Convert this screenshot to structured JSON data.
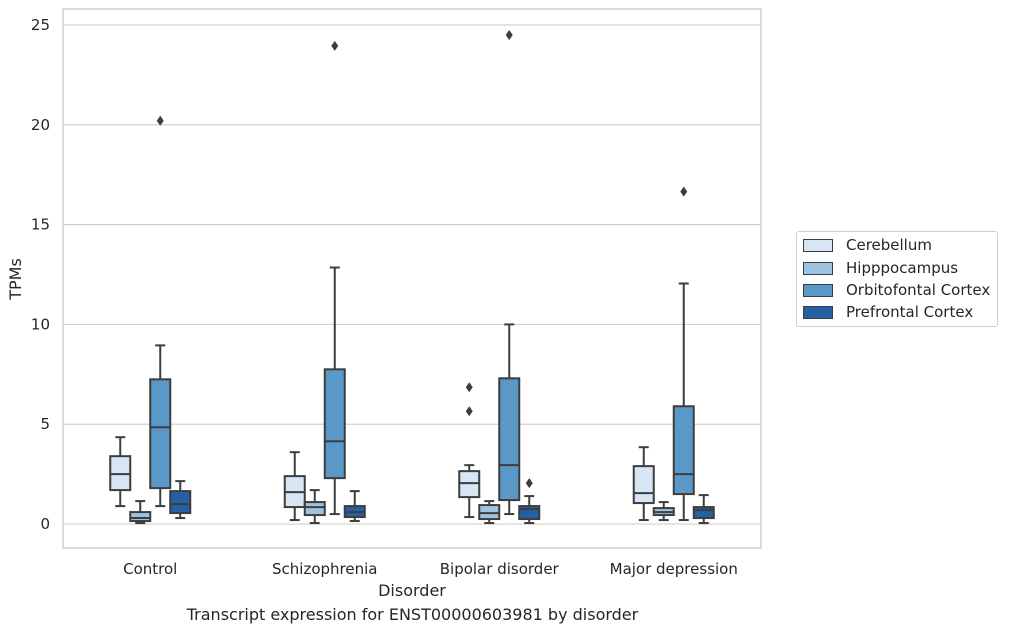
{
  "chart_data": {
    "type": "box",
    "xlabel": "Disorder",
    "ylabel": "TPMs",
    "caption": "Transcript expression for ENST00000603981 by disorder",
    "ylim": [
      -1.2,
      25.8
    ],
    "yticks": [
      0,
      5,
      10,
      15,
      20,
      25
    ],
    "grid": "horizontal",
    "legend_position": "outside-right",
    "categories": [
      "Control",
      "Schizophrenia",
      "Bipolar disorder",
      "Major depression"
    ],
    "series": [
      {
        "name": "Cerebellum",
        "color": "#d7e6f4",
        "boxes": [
          {
            "whisker_low": 0.9,
            "q1": 1.7,
            "median": 2.5,
            "q3": 3.4,
            "whisker_high": 4.35,
            "outliers": []
          },
          {
            "whisker_low": 0.2,
            "q1": 0.85,
            "median": 1.6,
            "q3": 2.4,
            "whisker_high": 3.6,
            "outliers": []
          },
          {
            "whisker_low": 0.35,
            "q1": 1.35,
            "median": 2.05,
            "q3": 2.65,
            "whisker_high": 2.95,
            "outliers": [
              5.65,
              6.85
            ]
          },
          {
            "whisker_low": 0.2,
            "q1": 1.05,
            "median": 1.55,
            "q3": 2.9,
            "whisker_high": 3.85,
            "outliers": []
          }
        ]
      },
      {
        "name": "Hipppocampus",
        "color": "#9dc3e0",
        "boxes": [
          {
            "whisker_low": 0.05,
            "q1": 0.15,
            "median": 0.3,
            "q3": 0.6,
            "whisker_high": 1.15,
            "outliers": []
          },
          {
            "whisker_low": 0.05,
            "q1": 0.45,
            "median": 0.85,
            "q3": 1.1,
            "whisker_high": 1.7,
            "outliers": []
          },
          {
            "whisker_low": 0.05,
            "q1": 0.25,
            "median": 0.55,
            "q3": 0.95,
            "whisker_high": 1.15,
            "outliers": []
          },
          {
            "whisker_low": 0.2,
            "q1": 0.45,
            "median": 0.6,
            "q3": 0.8,
            "whisker_high": 1.1,
            "outliers": []
          }
        ]
      },
      {
        "name": "Orbitofontal Cortex",
        "color": "#5a98c8",
        "boxes": [
          {
            "whisker_low": 0.9,
            "q1": 1.8,
            "median": 4.85,
            "q3": 7.25,
            "whisker_high": 8.95,
            "outliers": [
              20.2
            ]
          },
          {
            "whisker_low": 0.5,
            "q1": 2.3,
            "median": 4.15,
            "q3": 7.75,
            "whisker_high": 12.85,
            "outliers": [
              23.95
            ]
          },
          {
            "whisker_low": 0.5,
            "q1": 1.2,
            "median": 2.95,
            "q3": 7.3,
            "whisker_high": 10.0,
            "outliers": [
              24.5
            ]
          },
          {
            "whisker_low": 0.2,
            "q1": 1.5,
            "median": 2.5,
            "q3": 5.9,
            "whisker_high": 12.05,
            "outliers": [
              16.65
            ]
          }
        ]
      },
      {
        "name": "Prefrontal Cortex",
        "color": "#2560a6",
        "boxes": [
          {
            "whisker_low": 0.3,
            "q1": 0.55,
            "median": 1.0,
            "q3": 1.65,
            "whisker_high": 2.15,
            "outliers": []
          },
          {
            "whisker_low": 0.15,
            "q1": 0.35,
            "median": 0.6,
            "q3": 0.9,
            "whisker_high": 1.65,
            "outliers": []
          },
          {
            "whisker_low": 0.05,
            "q1": 0.25,
            "median": 0.75,
            "q3": 0.9,
            "whisker_high": 1.4,
            "outliers": [
              2.05
            ]
          },
          {
            "whisker_low": 0.05,
            "q1": 0.3,
            "median": 0.7,
            "q3": 0.85,
            "whisker_high": 1.45,
            "outliers": []
          }
        ]
      }
    ]
  }
}
